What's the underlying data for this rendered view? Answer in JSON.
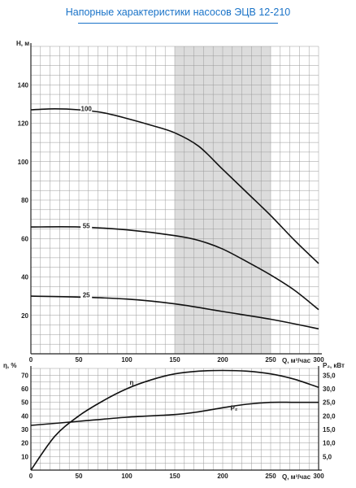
{
  "title": "Напорные характеристики насосов ЭЦВ 12-210",
  "chart_data": [
    {
      "type": "line",
      "xlabel": "Q, м³/час",
      "ylabel": "H, м",
      "xlim": [
        0,
        300
      ],
      "ylim": [
        0,
        160
      ],
      "x_ticks": [
        "0",
        "50",
        "100",
        "150",
        "200",
        "250",
        "300"
      ],
      "y_ticks": [
        "20",
        "40",
        "60",
        "80",
        "100",
        "120",
        "140"
      ],
      "grid": true,
      "shaded_range": [
        150,
        250
      ],
      "series": [
        {
          "name": "100",
          "x": [
            0,
            25,
            50,
            75,
            100,
            125,
            150,
            175,
            200,
            225,
            250,
            275,
            300
          ],
          "y": [
            127,
            127.5,
            127,
            125.5,
            122.5,
            119,
            115,
            108,
            96,
            84,
            72,
            59,
            47
          ]
        },
        {
          "name": "55",
          "x": [
            0,
            50,
            100,
            150,
            175,
            200,
            225,
            250,
            275,
            300
          ],
          "y": [
            66,
            66,
            64.5,
            61.5,
            59,
            54.5,
            48,
            41,
            33,
            23
          ]
        },
        {
          "name": "25",
          "x": [
            0,
            50,
            100,
            150,
            200,
            250,
            300
          ],
          "y": [
            30,
            29.5,
            28.5,
            26,
            22,
            18,
            13
          ]
        }
      ]
    },
    {
      "type": "line",
      "xlabel": "Q, м³/час",
      "ylabel": "η, %",
      "y2label": "P₂, кВт",
      "xlim": [
        0,
        300
      ],
      "ylim": [
        0,
        75
      ],
      "y2lim": [
        0,
        37.5
      ],
      "x_ticks": [
        "0",
        "50",
        "100",
        "150",
        "200",
        "250",
        "300"
      ],
      "y_ticks": [
        "10",
        "20",
        "30",
        "40",
        "50",
        "60",
        "70"
      ],
      "y2_ticks": [
        "5,0",
        "10,0",
        "15,0",
        "20,0",
        "25,0",
        "30,0",
        "35,0"
      ],
      "grid": true,
      "series": [
        {
          "name": "η",
          "axis": "left",
          "x": [
            0,
            25,
            50,
            75,
            100,
            125,
            150,
            175,
            200,
            225,
            250,
            275,
            300
          ],
          "y": [
            0,
            25,
            40,
            51,
            60,
            66.5,
            71,
            73,
            73.5,
            73,
            71,
            67,
            61
          ]
        },
        {
          "name": "P₂",
          "axis": "right",
          "x": [
            0,
            50,
            100,
            150,
            175,
            200,
            225,
            250,
            275,
            300
          ],
          "y": [
            16.5,
            18,
            19.5,
            20.5,
            21.5,
            23,
            24.3,
            25,
            25,
            25
          ]
        }
      ]
    }
  ]
}
